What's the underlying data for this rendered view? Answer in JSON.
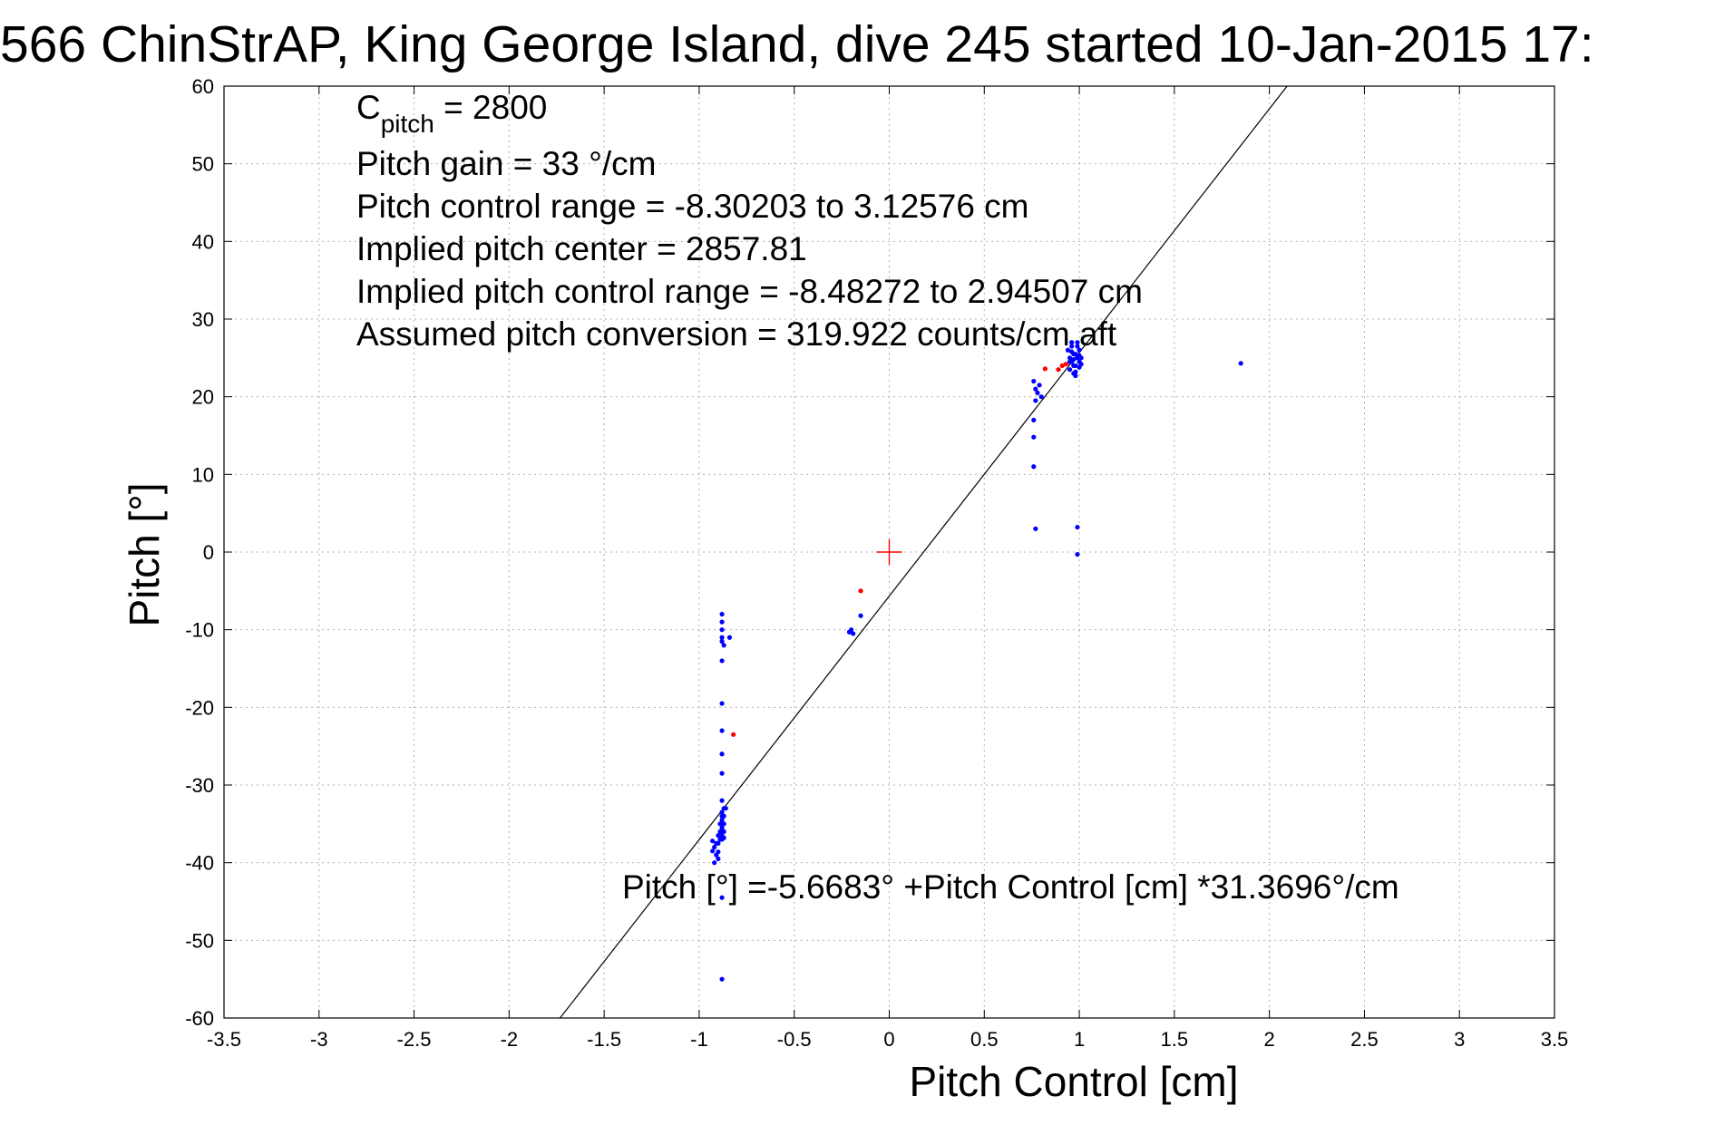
{
  "chart_data": {
    "type": "scatter",
    "title": "566 ChinStrAP, King George Island, dive 245 started 10-Jan-2015 17:",
    "xlabel": "Pitch Control [cm]",
    "ylabel": "Pitch [°]",
    "xlim": [
      -3.5,
      3.5
    ],
    "ylim": [
      -60,
      60
    ],
    "grid": true,
    "x_ticks": [
      -3.5,
      -3,
      -2.5,
      -2,
      -1.5,
      -1,
      -0.5,
      0,
      0.5,
      1,
      1.5,
      2,
      2.5,
      3,
      3.5
    ],
    "y_ticks": [
      -60,
      -50,
      -40,
      -30,
      -20,
      -10,
      0,
      10,
      20,
      30,
      40,
      50,
      60
    ],
    "x_tick_labels": [
      "-3.5",
      "-3",
      "-2.5",
      "-2",
      "-1.5",
      "-1",
      "-0.5",
      "0",
      "0.5",
      "1",
      "1.5",
      "2",
      "2.5",
      "3",
      "3.5"
    ],
    "y_tick_labels": [
      "-60",
      "-50",
      "-40",
      "-30",
      "-20",
      "-10",
      "0",
      "10",
      "20",
      "30",
      "40",
      "50",
      "60"
    ],
    "annotations": {
      "c_pitch_main": "C",
      "c_pitch_sub": "pitch",
      "c_pitch_value": " = 2800",
      "line2": "Pitch gain = 33 °/cm",
      "line3": "Pitch control range = -8.30203 to 3.12576 cm",
      "line4": "Implied pitch center = 2857.81",
      "line5": "Implied pitch control range = -8.48272 to 2.94507 cm",
      "line6": "Assumed pitch conversion = 319.922 counts/cm aft",
      "fit_equation": "Pitch [°] =-5.6683° +Pitch Control [cm] *31.3696°/cm"
    },
    "fit_line": {
      "intercept": -5.6683,
      "slope": 31.3696,
      "color": "#000000"
    },
    "center_marker": {
      "x": 0,
      "y": 0,
      "color": "#ff0000"
    },
    "series": [
      {
        "color": "#0000ff",
        "points": [
          [
            -0.88,
            -8
          ],
          [
            -0.88,
            -9
          ],
          [
            -0.88,
            -10
          ],
          [
            -0.88,
            -11
          ],
          [
            -0.88,
            -11.5
          ],
          [
            -0.87,
            -12
          ],
          [
            -0.88,
            -14
          ],
          [
            -0.84,
            -11
          ],
          [
            -0.88,
            -19.5
          ],
          [
            -0.88,
            -23
          ],
          [
            -0.88,
            -26
          ],
          [
            -0.88,
            -28.5
          ],
          [
            -0.88,
            -32
          ],
          [
            -0.87,
            -33
          ],
          [
            -0.88,
            -33.5
          ],
          [
            -0.87,
            -34
          ],
          [
            -0.88,
            -34.5
          ],
          [
            -0.89,
            -35
          ],
          [
            -0.88,
            -35.5
          ],
          [
            -0.87,
            -36
          ],
          [
            -0.88,
            -36.5
          ],
          [
            -0.89,
            -37
          ],
          [
            -0.9,
            -37.5
          ],
          [
            -0.92,
            -38
          ],
          [
            -0.93,
            -38.5
          ],
          [
            -0.91,
            -39
          ],
          [
            -0.9,
            -39.5
          ],
          [
            -0.92,
            -40
          ],
          [
            -0.88,
            -34
          ],
          [
            -0.87,
            -35
          ],
          [
            -0.89,
            -36
          ],
          [
            -0.86,
            -33
          ],
          [
            -0.9,
            -36.5
          ],
          [
            -0.91,
            -37.5
          ],
          [
            -0.88,
            -37
          ],
          [
            -0.87,
            -36.8
          ],
          [
            -0.93,
            -37.2
          ],
          [
            -0.9,
            -38.6
          ],
          [
            -0.88,
            -44.5
          ],
          [
            -0.88,
            -55
          ],
          [
            -0.2,
            -10
          ],
          [
            -0.21,
            -10.3
          ],
          [
            -0.19,
            -10.5
          ],
          [
            -0.15,
            -8.2
          ],
          [
            0.76,
            22
          ],
          [
            0.77,
            21
          ],
          [
            0.78,
            20.5
          ],
          [
            0.79,
            21.5
          ],
          [
            0.77,
            19.5
          ],
          [
            0.8,
            20
          ],
          [
            0.76,
            17
          ],
          [
            0.76,
            14.8
          ],
          [
            0.76,
            11
          ],
          [
            0.77,
            3
          ],
          [
            0.94,
            26
          ],
          [
            0.95,
            25
          ],
          [
            0.96,
            24.5
          ],
          [
            0.97,
            24
          ],
          [
            0.98,
            25.5
          ],
          [
            0.99,
            26.5
          ],
          [
            1.0,
            24.5
          ],
          [
            1.01,
            25
          ],
          [
            0.96,
            27
          ],
          [
            0.95,
            23.5
          ],
          [
            0.97,
            23
          ],
          [
            0.98,
            24
          ],
          [
            0.99,
            25
          ],
          [
            1.0,
            26
          ],
          [
            0.97,
            25.5
          ],
          [
            0.96,
            26.5
          ],
          [
            0.98,
            23.2
          ],
          [
            1.0,
            23.8
          ],
          [
            0.99,
            27
          ],
          [
            0.97,
            24.8
          ],
          [
            1.01,
            24.2
          ],
          [
            0.95,
            24.5
          ],
          [
            0.98,
            22.7
          ],
          [
            1.0,
            25.3
          ],
          [
            0.96,
            25.8
          ],
          [
            0.99,
            3.2
          ],
          [
            0.99,
            -0.3
          ],
          [
            1.85,
            24.3
          ]
        ]
      },
      {
        "color": "#ff0000",
        "points": [
          [
            -0.82,
            -23.5
          ],
          [
            -0.15,
            -5
          ],
          [
            0.82,
            23.6
          ],
          [
            0.91,
            24
          ],
          [
            0.89,
            23.5
          ],
          [
            0.93,
            24.2
          ]
        ]
      }
    ]
  }
}
